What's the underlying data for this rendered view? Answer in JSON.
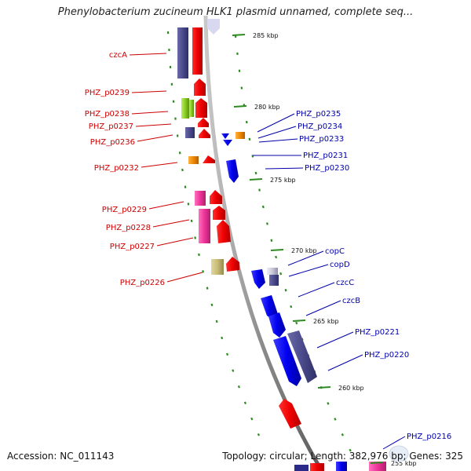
{
  "title": "Phenylobacterium zucineum HLK1 plasmid unnamed, complete seq...",
  "footer": {
    "accession": "Accession: NC_011143",
    "stats": "Topology: circular; Length: 382,976 bp; Genes: 325"
  },
  "colors": {
    "forward_label": "#cc0000",
    "reverse_label": "#0000aa",
    "backbone": "#8a8a8a",
    "tick": "#2e8b22"
  },
  "ticks": [
    {
      "label": "285 kbp"
    },
    {
      "label": "280 kbp"
    },
    {
      "label": "275 kbp"
    },
    {
      "label": "270 kbp"
    },
    {
      "label": "265 kbp"
    },
    {
      "label": "260 kbp"
    },
    {
      "label": "255 kbp"
    }
  ],
  "forward_labels": [
    {
      "text": "czcA"
    },
    {
      "text": "PHZ_p0239"
    },
    {
      "text": "PHZ_p0238"
    },
    {
      "text": "PHZ_p0237"
    },
    {
      "text": "PHZ_p0236"
    },
    {
      "text": "PHZ_p0232"
    },
    {
      "text": "PHZ_p0229"
    },
    {
      "text": "PHZ_p0228"
    },
    {
      "text": "PHZ_p0227"
    },
    {
      "text": "PHZ_p0226"
    }
  ],
  "reverse_labels": [
    {
      "text": "PHZ_p0235"
    },
    {
      "text": "PHZ_p0234"
    },
    {
      "text": "PHZ_p0233"
    },
    {
      "text": "PHZ_p0231"
    },
    {
      "text": "PHZ_p0230"
    },
    {
      "text": "copC"
    },
    {
      "text": "copD"
    },
    {
      "text": "czcC"
    },
    {
      "text": "czcB"
    },
    {
      "text": "PHZ_p0221"
    },
    {
      "text": "PHZ_p0220"
    },
    {
      "text": "PHZ_p0216"
    }
  ]
}
